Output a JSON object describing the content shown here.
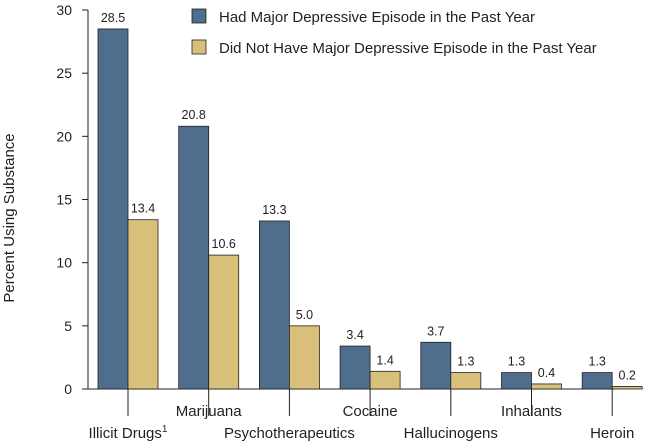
{
  "chart_data": {
    "type": "bar",
    "title": "",
    "xlabel": "",
    "ylabel": "Percent Using Substance",
    "ylim": [
      0,
      30
    ],
    "yticks": [
      "0",
      "5",
      "10",
      "15",
      "20",
      "25",
      "30"
    ],
    "grid": false,
    "legend_position": "top-right",
    "categories": [
      "Illicit Drugs",
      "Marijuana",
      "Psychotherapeutics",
      "Cocaine",
      "Hallucinogens",
      "Inhalants",
      "Heroin"
    ],
    "category_footnotes": [
      "1",
      "",
      "",
      "",
      "",
      "",
      ""
    ],
    "series": [
      {
        "name": "Had Major Depressive Episode in the Past Year",
        "color": "#4f6e8e",
        "values": [
          28.5,
          20.8,
          13.3,
          3.4,
          3.7,
          1.3,
          1.3
        ],
        "labels": [
          "28.5",
          "20.8",
          "13.3",
          "3.4",
          "3.7",
          "1.3",
          "1.3"
        ]
      },
      {
        "name": "Did Not Have Major Depressive Episode in the Past Year",
        "color": "#d9c07a",
        "values": [
          13.4,
          10.6,
          5.0,
          1.4,
          1.3,
          0.4,
          0.2
        ],
        "labels": [
          "13.4",
          "10.6",
          "5.0",
          "1.4",
          "1.3",
          "0.4",
          "0.2"
        ]
      }
    ]
  }
}
